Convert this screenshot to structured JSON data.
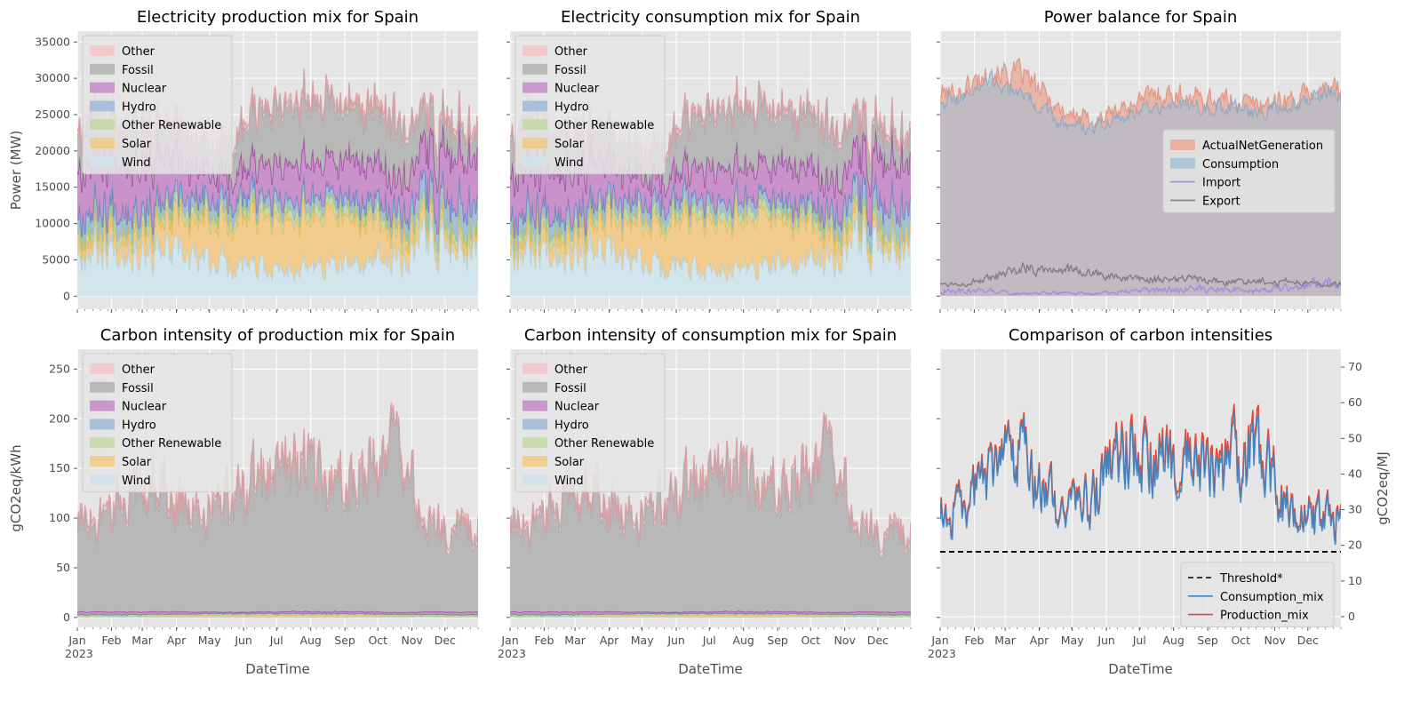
{
  "colors": {
    "background": "#e5e5e5",
    "grid": "#ffffff",
    "Other": "#f4c6c9",
    "Other_line": "#d8a1a5",
    "Fossil": "#b2b2b2",
    "Fossil_line": "#a6a6a6",
    "Nuclear": "#c58ac6",
    "Nuclear_line": "#9b3f9d",
    "Hydro": "#9dbad8",
    "Hydro_line": "#5c86be",
    "Other Renewable": "#c2d9a6",
    "Other Renewable_line": "#a6c57e",
    "Solar": "#f2c983",
    "Solar_line": "#e8b657",
    "Wind": "#cfe3ec",
    "Wind_line": "#b4d2de",
    "ActualNetGeneration": "#e8a494",
    "Consumption_fill": "#9fbfd6",
    "Import": "#9e8ee0",
    "Export": "#7f7f7f",
    "Threshold": "#000000",
    "Consumption_mix": "#3a85c7",
    "Production_mix": "#e24a33"
  },
  "x_axis": {
    "label": "DateTime",
    "months": [
      "Jan",
      "Feb",
      "Mar",
      "Apr",
      "May",
      "Jun",
      "Jul",
      "Aug",
      "Sep",
      "Oct",
      "Nov",
      "Dec"
    ],
    "year_label": "2023"
  },
  "chart_data": [
    {
      "id": "prod_mix",
      "type": "area",
      "stacked": true,
      "title": "Electricity production mix for Spain",
      "xlabel": "",
      "ylabel": "Power (MW)",
      "ylim": [
        -1800,
        36500
      ],
      "yticks": [
        0,
        5000,
        10000,
        15000,
        20000,
        25000,
        30000,
        35000
      ],
      "legend_position": "upper left",
      "legend": [
        "Other",
        "Fossil",
        "Nuclear",
        "Hydro",
        "Other Renewable",
        "Solar",
        "Wind"
      ],
      "x_months": [
        0.5,
        1.5,
        2.5,
        3.5,
        4.5,
        5.5,
        6.5,
        7.5,
        8.5,
        9.5,
        10.5,
        11.5
      ],
      "series": [
        {
          "name": "Wind",
          "values": [
            7000,
            7500,
            6200,
            5200,
            4800,
            3600,
            4200,
            4100,
            4500,
            5500,
            8000,
            7600
          ]
        },
        {
          "name": "Solar",
          "values": [
            1800,
            2600,
            3600,
            5200,
            6000,
            6800,
            7200,
            6800,
            5600,
            4000,
            1800,
            1500
          ]
        },
        {
          "name": "Other Renewable",
          "values": [
            1300,
            1300,
            1300,
            1300,
            1300,
            1300,
            1300,
            1300,
            1300,
            1300,
            1300,
            1300
          ]
        },
        {
          "name": "Hydro",
          "values": [
            2500,
            2000,
            1500,
            1500,
            1800,
            1500,
            1500,
            1300,
            1300,
            1500,
            3000,
            3000
          ]
        },
        {
          "name": "Nuclear",
          "values": [
            6800,
            6800,
            6400,
            4200,
            3200,
            4300,
            5200,
            4600,
            5500,
            4300,
            6200,
            6600
          ]
        },
        {
          "name": "Fossil",
          "values": [
            5600,
            4700,
            3600,
            3200,
            3600,
            7000,
            7700,
            7700,
            6800,
            7600,
            3800,
            3500
          ]
        },
        {
          "name": "Other",
          "values": [
            700,
            700,
            700,
            700,
            700,
            700,
            700,
            700,
            700,
            700,
            700,
            700
          ]
        }
      ]
    },
    {
      "id": "cons_mix",
      "type": "area",
      "stacked": true,
      "title": "Electricity consumption mix for Spain",
      "xlabel": "",
      "ylabel": "",
      "ylim": [
        -1800,
        36500
      ],
      "yticks": [
        0,
        5000,
        10000,
        15000,
        20000,
        25000,
        30000,
        35000
      ],
      "legend_position": "upper left",
      "legend": [
        "Other",
        "Fossil",
        "Nuclear",
        "Hydro",
        "Other Renewable",
        "Solar",
        "Wind"
      ],
      "x_months": [
        0.5,
        1.5,
        2.5,
        3.5,
        4.5,
        5.5,
        6.5,
        7.5,
        8.5,
        9.5,
        10.5,
        11.5
      ],
      "series": [
        {
          "name": "Wind",
          "values": [
            7000,
            7400,
            6100,
            5100,
            4700,
            3500,
            4100,
            4000,
            4400,
            5400,
            7900,
            7500
          ]
        },
        {
          "name": "Solar",
          "values": [
            1700,
            2500,
            3500,
            5000,
            5800,
            6600,
            7000,
            6600,
            5400,
            3900,
            1700,
            1400
          ]
        },
        {
          "name": "Other Renewable",
          "values": [
            1300,
            1300,
            1300,
            1300,
            1300,
            1300,
            1300,
            1300,
            1300,
            1300,
            1300,
            1300
          ]
        },
        {
          "name": "Hydro",
          "values": [
            2400,
            1900,
            1500,
            1500,
            1700,
            1500,
            1500,
            1300,
            1300,
            1500,
            2900,
            2900
          ]
        },
        {
          "name": "Nuclear",
          "values": [
            6300,
            6300,
            6000,
            4000,
            3000,
            4100,
            4900,
            4300,
            5200,
            4100,
            5800,
            6200
          ]
        },
        {
          "name": "Fossil",
          "values": [
            5400,
            4600,
            3500,
            3100,
            3500,
            6800,
            7500,
            7500,
            6600,
            7300,
            3700,
            3400
          ]
        },
        {
          "name": "Other",
          "values": [
            700,
            700,
            700,
            700,
            700,
            700,
            700,
            700,
            700,
            700,
            700,
            700
          ]
        }
      ]
    },
    {
      "id": "balance",
      "type": "area",
      "title": "Power balance for Spain",
      "xlabel": "",
      "ylabel": "",
      "ylim": [
        -1800,
        36500
      ],
      "legend_position": "center right",
      "legend": [
        "ActualNetGeneration",
        "Consumption",
        "Import",
        "Export"
      ],
      "x_months": [
        0.5,
        1.5,
        2.5,
        3.5,
        4.5,
        5.5,
        6.5,
        7.5,
        8.5,
        9.5,
        10.5,
        11.5
      ],
      "series": [
        {
          "name": "ActualNetGeneration",
          "values": [
            28000,
            31000,
            30500,
            26000,
            24000,
            26000,
            28000,
            27500,
            27000,
            26500,
            27000,
            28500
          ]
        },
        {
          "name": "Consumption",
          "values": [
            27000,
            29500,
            28000,
            24000,
            23000,
            24500,
            26500,
            26000,
            26000,
            25000,
            26500,
            28000
          ]
        },
        {
          "name": "Import",
          "values": [
            700,
            700,
            300,
            500,
            400,
            600,
            900,
            1000,
            900,
            800,
            1300,
            1800
          ]
        },
        {
          "name": "Export",
          "values": [
            1700,
            2300,
            3900,
            3800,
            3200,
            2300,
            2300,
            2300,
            1900,
            2100,
            2000,
            1600
          ]
        }
      ]
    },
    {
      "id": "ci_prod",
      "type": "area",
      "stacked": true,
      "title": "Carbon intensity of production mix for Spain",
      "xlabel": "DateTime",
      "ylabel": "gCO2eq/kWh",
      "ylim": [
        -10,
        270
      ],
      "yticks": [
        0,
        50,
        100,
        150,
        200,
        250
      ],
      "legend_position": "upper left",
      "legend": [
        "Other",
        "Fossil",
        "Nuclear",
        "Hydro",
        "Other Renewable",
        "Solar",
        "Wind"
      ],
      "x_months": [
        0.5,
        1.5,
        2.5,
        3.5,
        4.5,
        5.5,
        6.5,
        7.5,
        8.5,
        9.5,
        10.5,
        11.5
      ],
      "series": [
        {
          "name": "Wind",
          "values": [
            0.6,
            0.6,
            0.5,
            0.4,
            0.4,
            0.3,
            0.3,
            0.3,
            0.4,
            0.4,
            0.7,
            0.6
          ]
        },
        {
          "name": "Solar",
          "values": [
            0.6,
            0.8,
            1.2,
            1.7,
            2.0,
            2.1,
            2.2,
            2.1,
            1.8,
            1.3,
            0.6,
            0.5
          ]
        },
        {
          "name": "Other Renewable",
          "values": [
            1.3,
            1.3,
            1.3,
            1.3,
            1.3,
            1.3,
            1.3,
            1.3,
            1.3,
            1.3,
            1.3,
            1.3
          ]
        },
        {
          "name": "Hydro",
          "values": [
            0.4,
            0.3,
            0.3,
            0.3,
            0.3,
            0.3,
            0.3,
            0.2,
            0.2,
            0.3,
            0.5,
            0.5
          ]
        },
        {
          "name": "Nuclear",
          "values": [
            2.8,
            2.6,
            2.4,
            1.8,
            1.4,
            1.7,
            2.0,
            1.8,
            2.1,
            1.8,
            2.5,
            2.6
          ]
        },
        {
          "name": "Fossil",
          "values": [
            88,
            122,
            119,
            100,
            108,
            137,
            149,
            128,
            135,
            168,
            84,
            82
          ]
        },
        {
          "name": "Other",
          "values": [
            5,
            5,
            5,
            5,
            5,
            5,
            5,
            5,
            5,
            5,
            5,
            5
          ]
        }
      ]
    },
    {
      "id": "ci_cons",
      "type": "area",
      "stacked": true,
      "title": "Carbon intensity of consumption mix for Spain",
      "xlabel": "DateTime",
      "ylabel": "",
      "ylim": [
        -10,
        270
      ],
      "yticks": [
        0,
        50,
        100,
        150,
        200,
        250
      ],
      "legend_position": "upper left",
      "legend": [
        "Other",
        "Fossil",
        "Nuclear",
        "Hydro",
        "Other Renewable",
        "Solar",
        "Wind"
      ],
      "x_months": [
        0.5,
        1.5,
        2.5,
        3.5,
        4.5,
        5.5,
        6.5,
        7.5,
        8.5,
        9.5,
        10.5,
        11.5
      ],
      "series": [
        {
          "name": "Wind",
          "values": [
            0.6,
            0.6,
            0.5,
            0.4,
            0.4,
            0.3,
            0.3,
            0.3,
            0.4,
            0.4,
            0.7,
            0.6
          ]
        },
        {
          "name": "Solar",
          "values": [
            0.6,
            0.8,
            1.2,
            1.7,
            2.0,
            2.1,
            2.2,
            2.1,
            1.8,
            1.3,
            0.6,
            0.5
          ]
        },
        {
          "name": "Other Renewable",
          "values": [
            1.3,
            1.3,
            1.3,
            1.3,
            1.3,
            1.3,
            1.3,
            1.3,
            1.3,
            1.3,
            1.3,
            1.3
          ]
        },
        {
          "name": "Hydro",
          "values": [
            0.4,
            0.3,
            0.3,
            0.3,
            0.3,
            0.3,
            0.3,
            0.2,
            0.2,
            0.3,
            0.5,
            0.5
          ]
        },
        {
          "name": "Nuclear",
          "values": [
            2.8,
            2.6,
            2.4,
            1.8,
            1.4,
            1.7,
            2.0,
            1.8,
            2.1,
            1.8,
            2.5,
            2.6
          ]
        },
        {
          "name": "Fossil",
          "values": [
            84,
            116,
            114,
            95,
            102,
            131,
            142,
            122,
            130,
            160,
            80,
            78
          ]
        },
        {
          "name": "Other",
          "values": [
            5,
            5,
            5,
            5,
            5,
            5,
            5,
            5,
            5,
            5,
            5,
            5
          ]
        }
      ]
    },
    {
      "id": "compare",
      "type": "line",
      "title": "Comparison of carbon intensities",
      "xlabel": "DateTime",
      "ylabel": "",
      "ylabel_right": "gCO2eq/MJ",
      "ylim": [
        -3,
        75
      ],
      "yticks": [
        0,
        10,
        20,
        30,
        40,
        50,
        60,
        70
      ],
      "legend_position": "lower right",
      "legend": [
        "Threshold*",
        "Consumption_mix",
        "Production_mix"
      ],
      "threshold": 18.2,
      "x_months": [
        0.5,
        1.5,
        2.5,
        3.5,
        4.5,
        5.5,
        6.5,
        7.5,
        8.5,
        9.5,
        10.5,
        11.5
      ],
      "series": [
        {
          "name": "Consumption_mix",
          "values": [
            28,
            40,
            44,
            30,
            32,
            45,
            42,
            40,
            42,
            46,
            27,
            27
          ]
        },
        {
          "name": "Production_mix",
          "values": [
            29,
            41,
            45,
            31,
            33,
            47,
            44,
            42,
            44,
            48,
            28,
            28
          ]
        }
      ]
    }
  ]
}
